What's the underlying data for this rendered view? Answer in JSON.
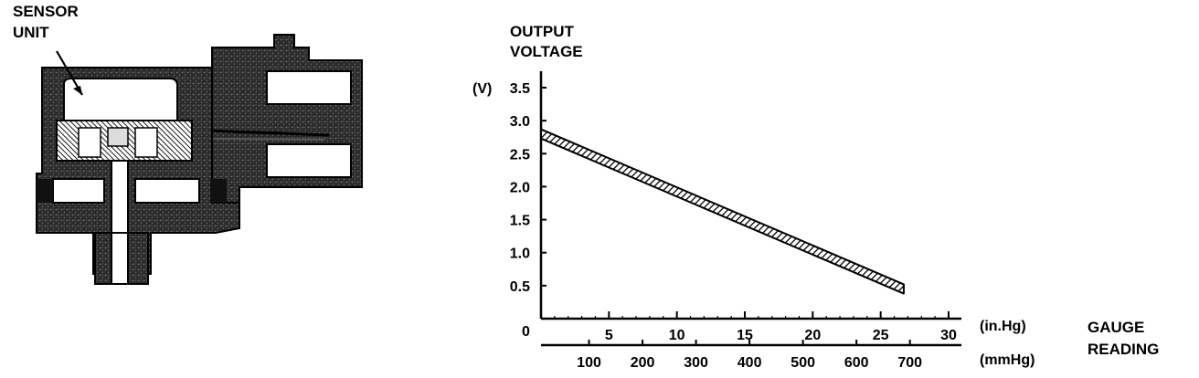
{
  "sensor_label": [
    "SENSOR",
    "UNIT"
  ],
  "chart_data": {
    "type": "line",
    "title": "",
    "ylabel_lines": [
      "OUTPUT",
      "VOLTAGE"
    ],
    "yunit": "(V)",
    "xlabel_lines": [
      "GAUGE",
      "READING"
    ],
    "x_unit_primary": "(in.Hg)",
    "x_unit_secondary": "(mmHg)",
    "y_origin_label": "0",
    "y_ticks": [
      0.5,
      1.0,
      1.5,
      2.0,
      2.5,
      3.0,
      3.5
    ],
    "y_tick_labels": [
      "0.5",
      "1.0",
      "1.5",
      "2.0",
      "2.5",
      "3.0",
      "3.5"
    ],
    "ylim": [
      0,
      3.5
    ],
    "x_ticks_inhg": [
      5,
      10,
      15,
      20,
      25,
      30
    ],
    "x_tick_labels_inhg": [
      "5",
      "10",
      "15",
      "20",
      "25",
      "30"
    ],
    "x_ticks_mmhg": [
      100,
      200,
      300,
      400,
      500,
      600,
      700
    ],
    "x_tick_labels_mmhg": [
      "100",
      "200",
      "300",
      "400",
      "500",
      "600",
      "700"
    ],
    "xlim_inhg": [
      0,
      30
    ],
    "series": [
      {
        "x": [
          0,
          26.7
        ],
        "y": [
          2.8,
          0.45
        ]
      }
    ],
    "band_width_v": 0.14,
    "line_color": "#000000"
  }
}
